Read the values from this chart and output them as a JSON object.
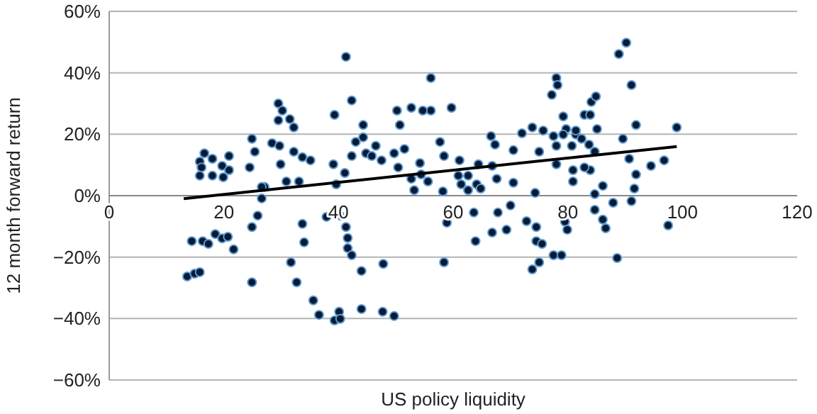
{
  "chart_data": {
    "type": "scatter",
    "xlabel": "US policy liquidity",
    "ylabel": "12 month forward return",
    "xlim": [
      0,
      120
    ],
    "xticks": [
      0,
      20,
      40,
      60,
      80,
      100,
      120
    ],
    "ylim": [
      -60,
      60
    ],
    "yticks": [
      {
        "value": -60,
        "label": "−60%"
      },
      {
        "value": -40,
        "label": "−40%"
      },
      {
        "value": -20,
        "label": "−20%"
      },
      {
        "value": 0,
        "label": "0%"
      },
      {
        "value": 20,
        "label": "20%"
      },
      {
        "value": 40,
        "label": "40%"
      },
      {
        "value": 60,
        "label": "60%"
      }
    ],
    "grid": "y",
    "legend": false,
    "series": [
      {
        "color": "#0a1a33",
        "marker": "circle",
        "x": [
          13.6,
          14.9,
          15.8,
          14.4,
          16.3,
          17.3,
          18.5,
          19.7,
          20.7,
          21.7,
          24.9,
          24.9,
          25.9,
          26.6,
          27.1,
          16.6,
          15.8,
          16.1,
          15.8,
          18,
          18,
          19.7,
          19.9,
          20.9,
          20.9,
          24.5,
          24.9,
          25.4,
          26.6,
          29.5,
          30.2,
          29.5,
          31.5,
          32.2,
          28.4,
          29.7,
          32.2,
          33.7,
          35.1,
          29.9,
          30.9,
          33.1,
          33.7,
          34,
          32.7,
          31.7,
          37.9,
          35.6,
          36.6,
          39.3,
          42.3,
          41.3,
          39.3,
          39.1,
          41.1,
          39.6,
          40.3,
          41.3,
          41.6,
          41.6,
          40.1,
          40.3,
          44,
          47.7,
          49.7,
          44,
          47.8,
          42.3,
          44.3,
          44.3,
          43,
          44.8,
          42.3,
          45.8,
          46.5,
          47.5,
          49.7,
          51.5,
          50.2,
          50.7,
          50.4,
          52.7,
          56.1,
          56.1,
          54.7,
          59.7,
          57.7,
          58.4,
          54.2,
          54.4,
          52.7,
          55.6,
          53.2,
          58.9,
          58.4,
          58.2,
          61.1,
          60.9,
          62.6,
          64.4,
          61.4,
          64.1,
          62.6,
          64.8,
          66.8,
          67.6,
          66.6,
          67.3,
          63.6,
          63.9,
          67.8,
          70,
          72.8,
          66.8,
          69.3,
          70.5,
          70.5,
          72,
          73.8,
          75.7,
          75,
          77.5,
          74.3,
          74.5,
          74.5,
          75.5,
          77.5,
          75,
          73.8,
          78,
          78.2,
          77.2,
          79.2,
          78,
          78,
          79.7,
          81.4,
          80.9,
          79.5,
          79.9,
          78.9,
          79.2,
          82.9,
          81.4,
          83.9,
          80.7,
          80.9,
          82.4,
          83.7,
          84.1,
          84.9,
          85.1,
          84.7,
          83.9,
          84.7,
          82.9,
          84.7,
          86.1,
          87.9,
          88.6,
          86.1,
          86.6,
          88.9,
          90.2,
          91.1,
          89.6,
          90.7,
          91.9,
          91.1,
          91.9,
          91.6,
          96.8,
          99,
          97.5,
          94.5
        ],
        "values": [
          -26.3,
          -25.4,
          -24.9,
          -14.8,
          -14.8,
          -15.7,
          -12.5,
          -13.9,
          -13.4,
          -17.5,
          -28.2,
          -10.2,
          -6.5,
          -0.9,
          2.8,
          13.8,
          11.1,
          9.2,
          6.5,
          12,
          6.5,
          9.7,
          6,
          8.3,
          12.9,
          9.2,
          18.5,
          14.3,
          2.8,
          30,
          27.7,
          24.5,
          24.9,
          22.2,
          17.1,
          16.2,
          14.3,
          12.5,
          11.5,
          10.2,
          4.6,
          4.6,
          -9.2,
          -15.2,
          -28.2,
          -21.7,
          -6.9,
          -34.1,
          -38.8,
          -40.6,
          31,
          45.2,
          26.3,
          10.2,
          7.4,
          3.7,
          -6.5,
          -10.2,
          -13.8,
          -17.1,
          -37.8,
          -40.1,
          -36.9,
          -37.8,
          -39.2,
          -24.5,
          -22.2,
          -19.4,
          23,
          19,
          17.5,
          13.8,
          12.9,
          12.9,
          16.2,
          11.5,
          13.8,
          15.2,
          27.7,
          23,
          9.2,
          28.6,
          38.3,
          27.7,
          27.7,
          28.6,
          17.5,
          12.9,
          10.6,
          6.9,
          5.5,
          4.6,
          1.8,
          -8.8,
          -21.7,
          1.4,
          11.5,
          6.5,
          6.5,
          10.2,
          3.7,
          3.7,
          1.8,
          2.3,
          9.7,
          5.5,
          19.4,
          16.6,
          -5.5,
          -14.8,
          -5.5,
          -3.2,
          -8.3,
          -12,
          -11.1,
          4.2,
          14.8,
          20.3,
          22.2,
          21.2,
          14.3,
          19.4,
          0.9,
          -10.2,
          -14.8,
          -15.7,
          -19.4,
          -21.7,
          -24,
          38.3,
          36,
          32.8,
          25.8,
          16.2,
          10.2,
          21.7,
          19.9,
          8.3,
          -8.5,
          -11.1,
          -19.4,
          19.9,
          26.3,
          21.2,
          26.3,
          16.2,
          4.6,
          18.5,
          16.6,
          30.5,
          32.3,
          21.7,
          14.3,
          8.3,
          0.5,
          9.2,
          -4.6,
          -7.8,
          -2.3,
          -20.3,
          3.2,
          -10.6,
          46.1,
          49.8,
          36,
          18.5,
          12,
          23,
          -1.8,
          6.9,
          2.3,
          11.5,
          22.2,
          -9.7,
          9.7
        ]
      },
      {
        "type": "line",
        "color": "#000000",
        "x": [
          13,
          99
        ],
        "values": [
          -1,
          16
        ]
      }
    ]
  }
}
